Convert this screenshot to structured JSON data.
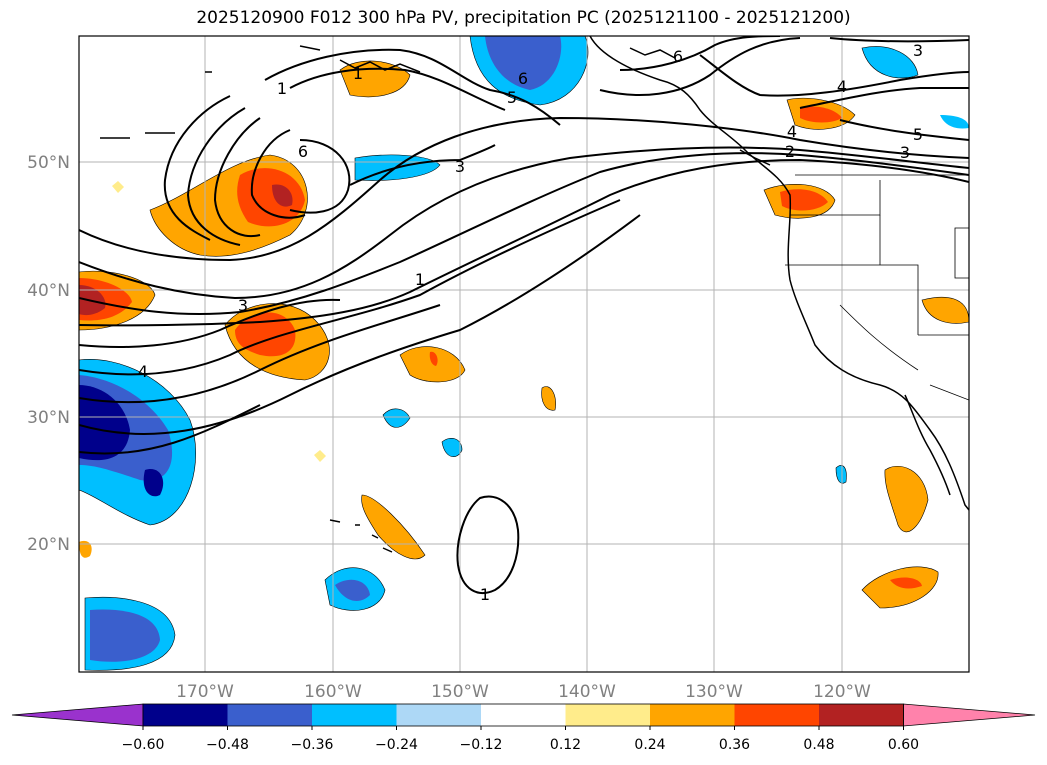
{
  "title": "2025120900 F012 300 hPa PV, precipitation PC (2025121100 - 2025121200)",
  "lat_labels": [
    "50°N",
    "40°N",
    "30°N",
    "20°N"
  ],
  "lon_labels": [
    "170°W",
    "160°W",
    "150°W",
    "140°W",
    "130°W",
    "120°W"
  ],
  "contour_labels": [
    "1",
    "1",
    "1",
    "1",
    "2",
    "3",
    "3",
    "3",
    "3",
    "4",
    "4",
    "4",
    "5",
    "5",
    "6",
    "6",
    "6"
  ],
  "colorbar": {
    "tick_labels": [
      "−0.60",
      "−0.48",
      "−0.36",
      "−0.24",
      "−0.12",
      "0.12",
      "0.24",
      "0.36",
      "0.48",
      "0.60"
    ],
    "colors": [
      "#9a32cd",
      "#00008b",
      "#3a5fcd",
      "#00bfff",
      "#add8f6",
      "#ffffff",
      "#ffec8b",
      "#ffa500",
      "#ff4500",
      "#b22222",
      "#ff82ab"
    ]
  }
}
